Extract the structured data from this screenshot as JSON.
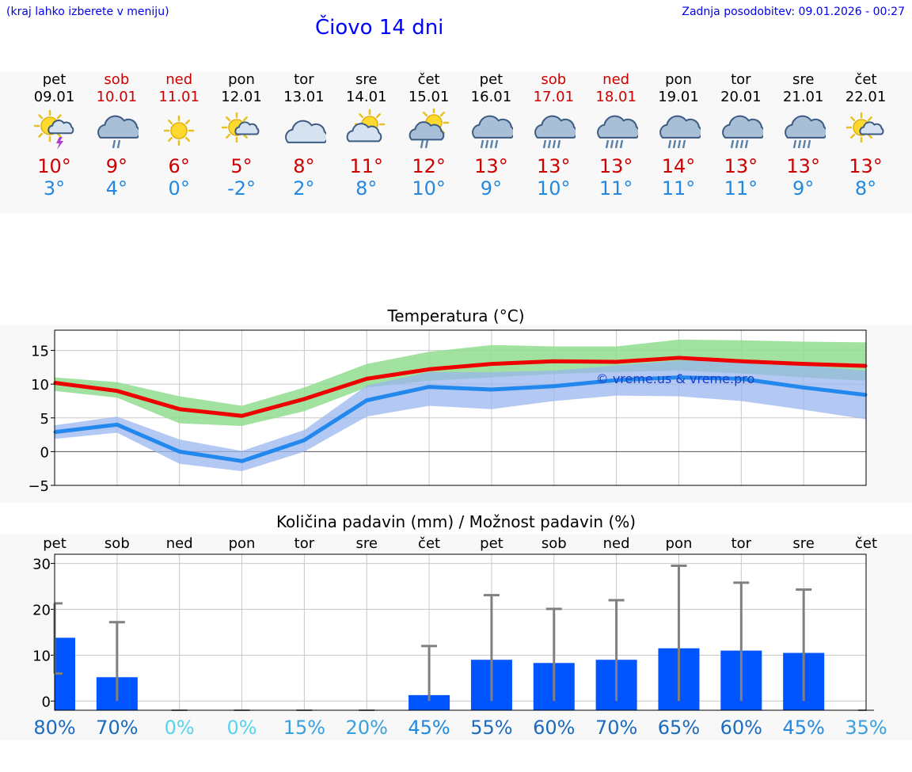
{
  "header": {
    "region_link": "(kraj lahko izberete v meniju)",
    "updated": "Zadnja posodobitev: 09.01.2026 - 00:27",
    "title": "Čiovo 14 dni"
  },
  "days": [
    {
      "name": "pet",
      "date": "09.01",
      "weekend": false,
      "icon": "sun-cloud-thunder-icon",
      "tmax": "10°",
      "tmin": "3°"
    },
    {
      "name": "sob",
      "date": "10.01",
      "weekend": true,
      "icon": "cloud-rain-icon",
      "tmax": "9°",
      "tmin": "4°"
    },
    {
      "name": "ned",
      "date": "11.01",
      "weekend": true,
      "icon": "sun-icon",
      "tmax": "6°",
      "tmin": "0°"
    },
    {
      "name": "pon",
      "date": "12.01",
      "weekend": false,
      "icon": "sun-small-cloud-icon",
      "tmax": "5°",
      "tmin": "-2°"
    },
    {
      "name": "tor",
      "date": "13.01",
      "weekend": false,
      "icon": "cloud-icon",
      "tmax": "8°",
      "tmin": "2°"
    },
    {
      "name": "sre",
      "date": "14.01",
      "weekend": false,
      "icon": "sun-cloud-icon",
      "tmax": "11°",
      "tmin": "8°"
    },
    {
      "name": "čet",
      "date": "15.01",
      "weekend": false,
      "icon": "sun-cloud-rain-icon",
      "tmax": "12°",
      "tmin": "10°"
    },
    {
      "name": "pet",
      "date": "16.01",
      "weekend": false,
      "icon": "cloud-heavy-rain-icon",
      "tmax": "13°",
      "tmin": "9°"
    },
    {
      "name": "sob",
      "date": "17.01",
      "weekend": true,
      "icon": "cloud-heavy-rain-icon",
      "tmax": "13°",
      "tmin": "10°"
    },
    {
      "name": "ned",
      "date": "18.01",
      "weekend": true,
      "icon": "cloud-heavy-rain-icon",
      "tmax": "13°",
      "tmin": "11°"
    },
    {
      "name": "pon",
      "date": "19.01",
      "weekend": false,
      "icon": "cloud-heavy-rain-icon",
      "tmax": "14°",
      "tmin": "11°"
    },
    {
      "name": "tor",
      "date": "20.01",
      "weekend": false,
      "icon": "cloud-heavy-rain-icon",
      "tmax": "13°",
      "tmin": "11°"
    },
    {
      "name": "sre",
      "date": "21.01",
      "weekend": false,
      "icon": "cloud-heavy-rain-icon",
      "tmax": "13°",
      "tmin": "9°"
    },
    {
      "name": "čet",
      "date": "22.01",
      "weekend": false,
      "icon": "sun-small-cloud-icon",
      "tmax": "13°",
      "tmin": "8°"
    }
  ],
  "colors": {
    "max_line": "#ee0000",
    "min_line": "#2288ee",
    "max_band": "#90dd90",
    "min_band": "#99b6ee",
    "precip_bar": "#0055ff",
    "error_bar": "#808080",
    "weekend": "#cc0000"
  },
  "chart_data": [
    {
      "type": "line",
      "title": "Temperatura (°C)",
      "watermark": "© vreme.us & vreme.pro",
      "categories": [
        "pet",
        "sob",
        "ned",
        "pon",
        "tor",
        "sre",
        "čet",
        "pet",
        "sob",
        "ned",
        "pon",
        "tor",
        "sre",
        "čet"
      ],
      "ylim": [
        -5,
        18
      ],
      "yticks": [
        15,
        10,
        5,
        0,
        -5
      ],
      "series": [
        {
          "name": "max",
          "values": [
            10.2,
            9.0,
            6.3,
            5.3,
            7.8,
            10.8,
            12.2,
            13.0,
            13.4,
            13.3,
            13.9,
            13.4,
            13.0,
            12.7
          ],
          "low": [
            9.0,
            8.0,
            4.2,
            3.8,
            6.0,
            9.5,
            10.5,
            11.0,
            11.5,
            11.8,
            12.0,
            11.6,
            11.0,
            10.5
          ],
          "high": [
            11.0,
            10.3,
            8.2,
            6.8,
            9.5,
            13.0,
            14.8,
            15.8,
            15.6,
            15.6,
            16.6,
            16.5,
            16.3,
            16.2
          ]
        },
        {
          "name": "min",
          "values": [
            2.9,
            4.0,
            0.0,
            -1.4,
            1.7,
            7.6,
            9.6,
            9.2,
            9.7,
            10.6,
            11.0,
            10.8,
            9.5,
            8.4
          ],
          "low": [
            1.9,
            2.8,
            -1.8,
            -2.9,
            0.0,
            5.2,
            6.8,
            6.3,
            7.5,
            8.3,
            8.2,
            7.5,
            6.2,
            4.8
          ],
          "high": [
            3.9,
            5.2,
            1.8,
            0.1,
            3.2,
            9.8,
            11.8,
            11.8,
            12.0,
            12.8,
            13.5,
            13.5,
            12.8,
            12.0
          ]
        }
      ]
    },
    {
      "type": "bar",
      "title": "Količina padavin (mm) / Možnost padavin (%)",
      "categories": [
        "pet",
        "sob",
        "ned",
        "pon",
        "tor",
        "sre",
        "čet",
        "pet",
        "sob",
        "ned",
        "pon",
        "tor",
        "sre",
        "čet"
      ],
      "ylim": [
        -2,
        32
      ],
      "yticks": [
        30,
        20,
        10,
        0
      ],
      "values": [
        13.8,
        5.2,
        0,
        0,
        0,
        0,
        1.3,
        9.0,
        8.3,
        9.0,
        11.5,
        11.0,
        10.5,
        0
      ],
      "error_high": [
        21.3,
        17.2,
        0,
        0,
        0,
        0,
        12.0,
        23.1,
        20.1,
        22.0,
        29.5,
        25.8,
        24.3,
        0
      ],
      "error_low": [
        6.0,
        0,
        0,
        0,
        0,
        0,
        0,
        0,
        0,
        0,
        0,
        0,
        0,
        0
      ],
      "probability": [
        "80%",
        "70%",
        "0%",
        "0%",
        "15%",
        "20%",
        "45%",
        "55%",
        "60%",
        "70%",
        "65%",
        "60%",
        "45%",
        "35%"
      ],
      "probability_colors": [
        "#1a6bbf",
        "#1a6bbf",
        "#55d4ee",
        "#55d4ee",
        "#3aa0dd",
        "#3aa0dd",
        "#2288e0",
        "#1a6bbf",
        "#1a6bbf",
        "#1a6bbf",
        "#1a6bbf",
        "#1a6bbf",
        "#2288e0",
        "#3aa0dd"
      ]
    }
  ]
}
